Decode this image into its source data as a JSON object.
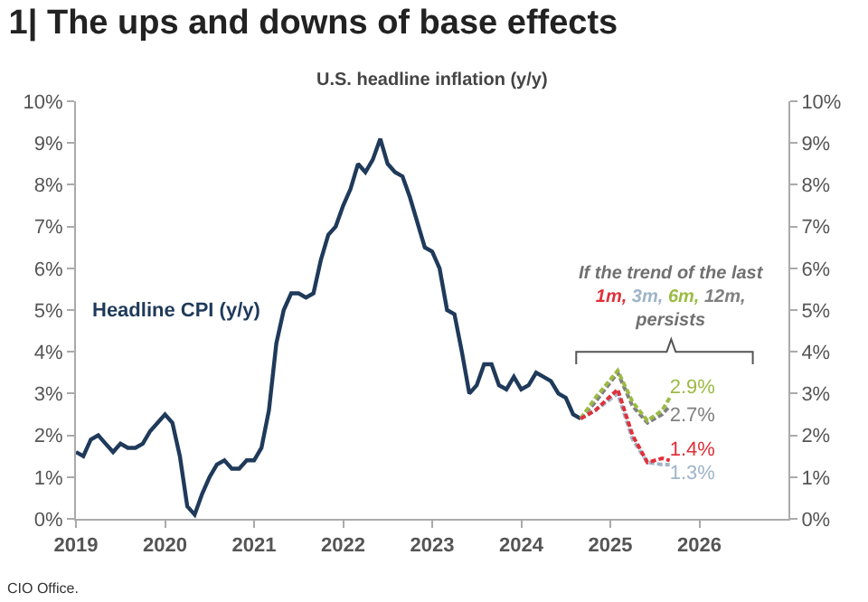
{
  "chart_data": {
    "type": "line",
    "title": "1| The ups and downs of base effects",
    "subtitle": "U.S. headline inflation (y/y)",
    "xlim": [
      2019,
      2027
    ],
    "xticks": [
      2019,
      2020,
      2021,
      2022,
      2023,
      2024,
      2025,
      2026
    ],
    "ylim": [
      0,
      10
    ],
    "yticks": [
      {
        "value": 0,
        "label": "0%"
      },
      {
        "value": 1,
        "label": "1%"
      },
      {
        "value": 2,
        "label": "2%"
      },
      {
        "value": 3,
        "label": "3%"
      },
      {
        "value": 4,
        "label": "4%"
      },
      {
        "value": 5,
        "label": "5%"
      },
      {
        "value": 6,
        "label": "6%"
      },
      {
        "value": 7,
        "label": "7%"
      },
      {
        "value": 8,
        "label": "8%"
      },
      {
        "value": 9,
        "label": "9%"
      },
      {
        "value": 10,
        "label": "10%"
      }
    ],
    "y2lim": [
      0,
      10
    ],
    "y2ticks": [
      {
        "value": 0,
        "label": "0%"
      },
      {
        "value": 1,
        "label": "1%"
      },
      {
        "value": 2,
        "label": "2%"
      },
      {
        "value": 3,
        "label": "3%"
      },
      {
        "value": 4,
        "label": "4%"
      },
      {
        "value": 5,
        "label": "5%"
      },
      {
        "value": 6,
        "label": "6%"
      },
      {
        "value": 7,
        "label": "7%"
      },
      {
        "value": 8,
        "label": "8%"
      },
      {
        "value": 9,
        "label": "9%"
      },
      {
        "value": 10,
        "label": "10%"
      }
    ],
    "legend": false,
    "marker": "none",
    "series": [
      {
        "name": "Headline CPI (y/y)",
        "color": "#1f3a5a",
        "line_style": "solid",
        "x": [
          2019.0,
          2019.083,
          2019.167,
          2019.25,
          2019.333,
          2019.417,
          2019.5,
          2019.583,
          2019.667,
          2019.75,
          2019.833,
          2019.917,
          2020.0,
          2020.083,
          2020.167,
          2020.25,
          2020.333,
          2020.417,
          2020.5,
          2020.583,
          2020.667,
          2020.75,
          2020.833,
          2020.917,
          2021.0,
          2021.083,
          2021.167,
          2021.25,
          2021.333,
          2021.417,
          2021.5,
          2021.583,
          2021.667,
          2021.75,
          2021.833,
          2021.917,
          2022.0,
          2022.083,
          2022.167,
          2022.25,
          2022.333,
          2022.417,
          2022.5,
          2022.583,
          2022.667,
          2022.75,
          2022.833,
          2022.917,
          2023.0,
          2023.083,
          2023.167,
          2023.25,
          2023.333,
          2023.417,
          2023.5,
          2023.583,
          2023.667,
          2023.75,
          2023.833,
          2023.917,
          2024.0,
          2024.083,
          2024.167,
          2024.25,
          2024.333,
          2024.417,
          2024.5,
          2024.583,
          2024.667
        ],
        "values": [
          1.6,
          1.5,
          1.9,
          2.0,
          1.8,
          1.6,
          1.8,
          1.7,
          1.7,
          1.8,
          2.1,
          2.3,
          2.5,
          2.3,
          1.5,
          0.3,
          0.1,
          0.6,
          1.0,
          1.3,
          1.4,
          1.2,
          1.2,
          1.4,
          1.4,
          1.7,
          2.6,
          4.2,
          5.0,
          5.4,
          5.4,
          5.3,
          5.4,
          6.2,
          6.8,
          7.0,
          7.5,
          7.9,
          8.5,
          8.3,
          8.6,
          9.1,
          8.5,
          8.3,
          8.2,
          7.7,
          7.1,
          6.5,
          6.4,
          6.0,
          5.0,
          4.9,
          4.0,
          3.0,
          3.2,
          3.7,
          3.7,
          3.2,
          3.1,
          3.4,
          3.1,
          3.2,
          3.5,
          3.4,
          3.3,
          3.0,
          2.9,
          2.5,
          2.4
        ]
      },
      {
        "color": "#e0303a",
        "line_style": "dashed",
        "x": [
          2024.667,
          2024.833,
          2025.083,
          2025.25,
          2025.417,
          2025.583,
          2025.667
        ],
        "values": [
          2.4,
          2.6,
          3.1,
          2.0,
          1.35,
          1.45,
          1.4
        ],
        "value_labels": [
          null,
          null,
          null,
          null,
          null,
          null,
          "1.4%"
        ]
      },
      {
        "color": "#9fb4c8",
        "line_style": "dashed",
        "x": [
          2024.667,
          2024.833,
          2025.083,
          2025.25,
          2025.417,
          2025.583,
          2025.667
        ],
        "values": [
          2.4,
          2.6,
          3.0,
          1.9,
          1.35,
          1.3,
          1.3
        ],
        "value_labels": [
          null,
          null,
          null,
          null,
          null,
          null,
          "1.3%"
        ]
      },
      {
        "color": "#9bbb43",
        "line_style": "dashed",
        "x": [
          2024.667,
          2024.833,
          2025.083,
          2025.25,
          2025.417,
          2025.583,
          2025.667
        ],
        "values": [
          2.4,
          2.9,
          3.55,
          2.8,
          2.35,
          2.6,
          2.9
        ],
        "value_labels": [
          null,
          null,
          null,
          null,
          null,
          null,
          "2.9%"
        ]
      },
      {
        "color": "#808080",
        "line_style": "dashed",
        "x": [
          2024.667,
          2024.833,
          2025.083,
          2025.25,
          2025.417,
          2025.583,
          2025.667
        ],
        "values": [
          2.4,
          2.8,
          3.5,
          2.7,
          2.3,
          2.5,
          2.7
        ],
        "value_labels": [
          null,
          null,
          null,
          null,
          null,
          null,
          "2.7%"
        ]
      }
    ],
    "annotations": [
      "If the trend of the last\n1m, 3m, 6m, 12m,\npersists",
      "CIO Office."
    ]
  }
}
